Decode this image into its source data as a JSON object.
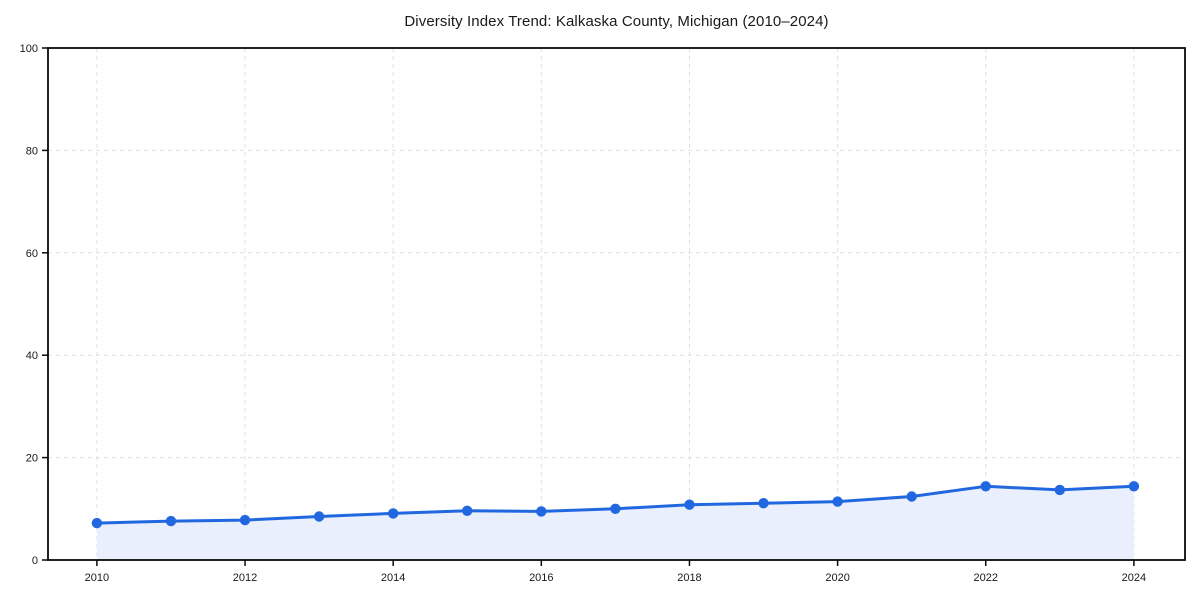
{
  "chart_data": {
    "type": "area",
    "title": "Diversity Index Trend: Kalkaska County, Michigan (2010–2024)",
    "series_name": "Diversity Index",
    "x": [
      2010,
      2011,
      2012,
      2013,
      2014,
      2015,
      2016,
      2017,
      2018,
      2019,
      2020,
      2021,
      2022,
      2023,
      2024
    ],
    "values": [
      7.2,
      7.6,
      7.8,
      8.5,
      9.1,
      9.6,
      9.5,
      10.0,
      10.8,
      11.1,
      11.4,
      12.4,
      14.4,
      13.7,
      14.4
    ],
    "xlabel": "",
    "ylabel": "",
    "xlim": [
      2009.34,
      2024.69
    ],
    "ylim": [
      0,
      100
    ],
    "xticks": [
      2010,
      2012,
      2014,
      2016,
      2018,
      2020,
      2022,
      2024
    ],
    "yticks": [
      0,
      20,
      40,
      60,
      80,
      100
    ],
    "grid": true,
    "grid_style": "dashed",
    "legend": false,
    "marker": "circle",
    "colors": {
      "line": "#2168e0",
      "marker": "#2168e0",
      "fill": "#e9effc",
      "grid": "#dedede",
      "spine": "#0a0a0a",
      "text": "#1a1a1a",
      "background": "#ffffff"
    }
  }
}
